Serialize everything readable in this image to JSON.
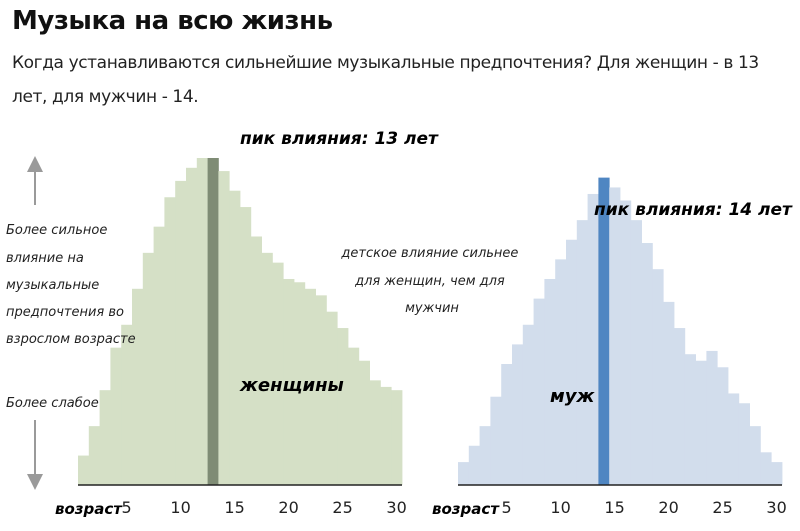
{
  "title": "Музыка на всю жизнь",
  "subtitle": "Когда устанавливаются сильнейшие музыкальные предпочтения? Для женщин - в 13 лет, для мужчин - 14.",
  "side_labels": {
    "stronger": [
      "Более сильное",
      "влияние на",
      "музыкальные",
      "предпочтения во",
      "взрослом возрасте"
    ],
    "weaker": "Более слабое"
  },
  "annotation": [
    "детское влияние сильнее",
    "для женщин, чем для",
    "мужчин"
  ],
  "colors": {
    "women_fill": "#d5e0c6",
    "women_peak": "#7f8c75",
    "men_fill": "#d2ddec",
    "men_peak": "#4f86c2",
    "axis": "#222222",
    "arrow": "#9a9a9a"
  },
  "chart_data": [
    {
      "type": "bar",
      "title": "",
      "series_label": "женщины",
      "xlabel": "возраст",
      "x_ticks": [
        5,
        10,
        15,
        20,
        25,
        30
      ],
      "ages": [
        1,
        2,
        3,
        4,
        5,
        6,
        7,
        8,
        9,
        10,
        11,
        12,
        13,
        14,
        15,
        16,
        17,
        18,
        19,
        20,
        21,
        22,
        23,
        24,
        25,
        26,
        27,
        28,
        29,
        30
      ],
      "values": [
        0.09,
        0.18,
        0.29,
        0.42,
        0.49,
        0.6,
        0.71,
        0.79,
        0.88,
        0.93,
        0.97,
        1.0,
        1.0,
        0.96,
        0.9,
        0.85,
        0.76,
        0.71,
        0.68,
        0.63,
        0.62,
        0.6,
        0.58,
        0.53,
        0.48,
        0.42,
        0.38,
        0.32,
        0.3,
        0.29
      ],
      "peak_age": 13,
      "peak_label": "пик влияния: 13 лет",
      "ylim": [
        0,
        1
      ]
    },
    {
      "type": "bar",
      "title": "",
      "series_label": "муж",
      "xlabel": "возраст",
      "x_ticks": [
        5,
        10,
        15,
        20,
        25,
        30
      ],
      "ages": [
        1,
        2,
        3,
        4,
        5,
        6,
        7,
        8,
        9,
        10,
        11,
        12,
        13,
        14,
        15,
        16,
        17,
        18,
        19,
        20,
        21,
        22,
        23,
        24,
        25,
        26,
        27,
        28,
        29,
        30
      ],
      "values": [
        0.07,
        0.12,
        0.18,
        0.27,
        0.37,
        0.43,
        0.49,
        0.57,
        0.63,
        0.69,
        0.75,
        0.81,
        0.89,
        0.94,
        0.91,
        0.87,
        0.81,
        0.74,
        0.66,
        0.56,
        0.48,
        0.4,
        0.38,
        0.41,
        0.36,
        0.28,
        0.25,
        0.18,
        0.1,
        0.07
      ],
      "peak_age": 14,
      "peak_label": "пик влияния: 14 лет",
      "ylim": [
        0,
        1
      ]
    }
  ]
}
